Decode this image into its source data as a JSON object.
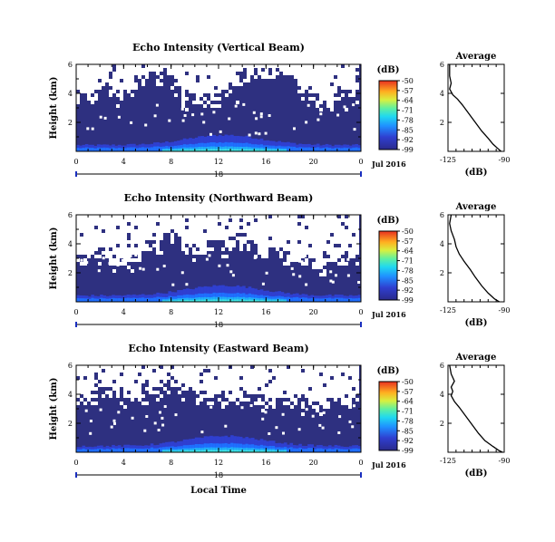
{
  "chart_data": [
    {
      "type": "heatmap",
      "title": "Echo Intensity (Vertical Beam)",
      "ylabel": "Height (km)",
      "x_ticks": [
        "0",
        "4",
        "8",
        "12",
        "16",
        "20",
        "0"
      ],
      "y_ticks": [
        "6",
        "4",
        "2"
      ],
      "ylim": [
        0,
        6
      ],
      "xlim": [
        0,
        24
      ],
      "date_day": "18",
      "date_label": "Jul 2016",
      "no_data_ceiling_km": [
        3.4,
        3.6,
        4.0,
        3.6,
        3.8,
        4.6,
        4.9,
        5.0,
        4.5,
        3.5,
        3.3,
        3.4,
        3.7,
        4.0,
        4.6,
        5.0,
        5.0,
        5.1,
        4.7,
        3.9,
        3.3,
        3.2,
        3.5,
        3.6
      ],
      "colorbar": {
        "unit": "(dB)",
        "ticks": [
          "-50",
          "-57",
          "-64",
          "-71",
          "-78",
          "-85",
          "-92",
          "-99"
        ]
      },
      "average_profile": {
        "title": "Average",
        "xlabel": "(dB)",
        "x_ticks": [
          "-125",
          "-90"
        ],
        "y_ticks": [
          "6",
          "4",
          "2"
        ],
        "xlim": [
          -125,
          -90
        ],
        "points": [
          [
            -124,
            6.0
          ],
          [
            -124,
            5.2
          ],
          [
            -123,
            4.7
          ],
          [
            -124,
            4.3
          ],
          [
            -122,
            3.9
          ],
          [
            -119,
            3.6
          ],
          [
            -116,
            3.2
          ],
          [
            -112,
            2.6
          ],
          [
            -108,
            2.0
          ],
          [
            -104,
            1.4
          ],
          [
            -100,
            0.9
          ],
          [
            -97,
            0.5
          ],
          [
            -94,
            0.2
          ],
          [
            -92,
            0.0
          ]
        ]
      }
    },
    {
      "type": "heatmap",
      "title": "Echo Intensity (Northward Beam)",
      "ylabel": "Height (km)",
      "x_ticks": [
        "0",
        "4",
        "8",
        "12",
        "16",
        "20",
        "0"
      ],
      "y_ticks": [
        "6",
        "4",
        "2"
      ],
      "ylim": [
        0,
        6
      ],
      "xlim": [
        0,
        24
      ],
      "date_day": "18",
      "date_label": "Jul 2016",
      "no_data_ceiling_km": [
        2.6,
        2.8,
        3.0,
        2.6,
        2.7,
        2.8,
        3.5,
        4.0,
        4.3,
        3.6,
        3.4,
        3.5,
        3.6,
        3.9,
        3.7,
        3.3,
        3.0,
        3.2,
        2.9,
        2.7,
        2.4,
        2.5,
        2.6,
        2.8
      ],
      "colorbar": {
        "unit": "(dB)",
        "ticks": [
          "-50",
          "-57",
          "-64",
          "-71",
          "-78",
          "-85",
          "-92",
          "-99"
        ]
      },
      "average_profile": {
        "title": "Average",
        "xlabel": "(dB)",
        "x_ticks": [
          "-125",
          "-90"
        ],
        "y_ticks": [
          "6",
          "4",
          "2"
        ],
        "xlim": [
          -125,
          -90
        ],
        "points": [
          [
            -123,
            6.0
          ],
          [
            -124,
            5.4
          ],
          [
            -123,
            4.9
          ],
          [
            -121,
            4.3
          ],
          [
            -120,
            3.8
          ],
          [
            -118,
            3.3
          ],
          [
            -115,
            2.8
          ],
          [
            -111,
            2.2
          ],
          [
            -108,
            1.7
          ],
          [
            -104,
            1.1
          ],
          [
            -100,
            0.6
          ],
          [
            -96,
            0.2
          ],
          [
            -93,
            0.0
          ]
        ]
      }
    },
    {
      "type": "heatmap",
      "title": "Echo Intensity (Eastward Beam)",
      "ylabel": "Height (km)",
      "xlabel": "Local Time",
      "x_ticks": [
        "0",
        "4",
        "8",
        "12",
        "16",
        "20",
        "0"
      ],
      "y_ticks": [
        "6",
        "4",
        "2"
      ],
      "ylim": [
        0,
        6
      ],
      "xlim": [
        0,
        24
      ],
      "date_day": "18",
      "date_label": "Jul 2016",
      "no_data_ceiling_km": [
        3.3,
        3.5,
        3.8,
        3.9,
        3.6,
        3.5,
        4.0,
        4.3,
        4.6,
        4.0,
        3.6,
        3.3,
        3.5,
        3.8,
        3.6,
        3.4,
        3.2,
        3.5,
        3.4,
        3.1,
        2.9,
        3.1,
        3.3,
        3.3
      ],
      "colorbar": {
        "unit": "(dB)",
        "ticks": [
          "-50",
          "-57",
          "-64",
          "-71",
          "-78",
          "-85",
          "-92",
          "-99"
        ]
      },
      "average_profile": {
        "title": "Average",
        "xlabel": "(dB)",
        "x_ticks": [
          "-125",
          "-90"
        ],
        "y_ticks": [
          "6",
          "4",
          "2"
        ],
        "xlim": [
          -125,
          -90
        ],
        "points": [
          [
            -124,
            6.0
          ],
          [
            -123,
            5.4
          ],
          [
            -121,
            4.9
          ],
          [
            -123,
            4.5
          ],
          [
            -122,
            4.2
          ],
          [
            -123,
            3.9
          ],
          [
            -121,
            3.5
          ],
          [
            -118,
            3.1
          ],
          [
            -114,
            2.5
          ],
          [
            -110,
            1.9
          ],
          [
            -106,
            1.3
          ],
          [
            -102,
            0.8
          ],
          [
            -97,
            0.4
          ],
          [
            -93,
            0.1
          ],
          [
            -91,
            0.0
          ]
        ]
      }
    }
  ]
}
